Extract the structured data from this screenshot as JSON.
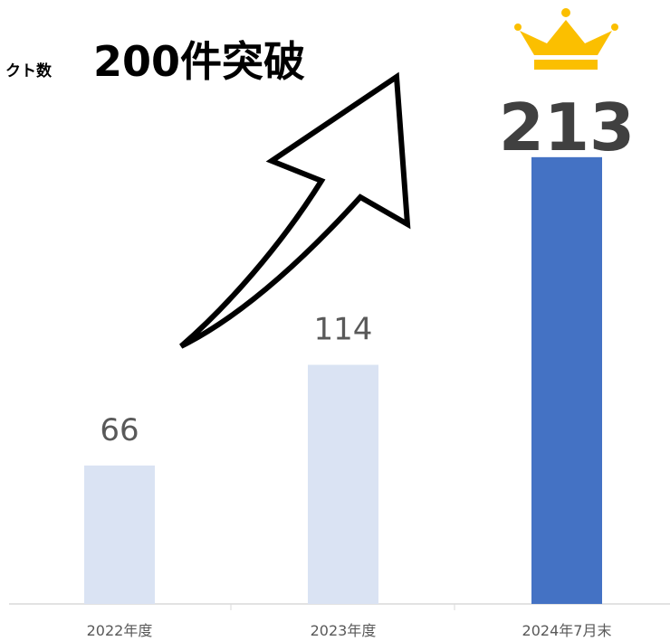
{
  "chart_data": {
    "type": "bar",
    "title": "クト数",
    "annotation": "200件突破",
    "categories": [
      "2022年度",
      "2023年度",
      "2024年7月末"
    ],
    "values": [
      66,
      114,
      213
    ],
    "colors": [
      "#dae3f3",
      "#dae3f3",
      "#4472c4"
    ]
  }
}
